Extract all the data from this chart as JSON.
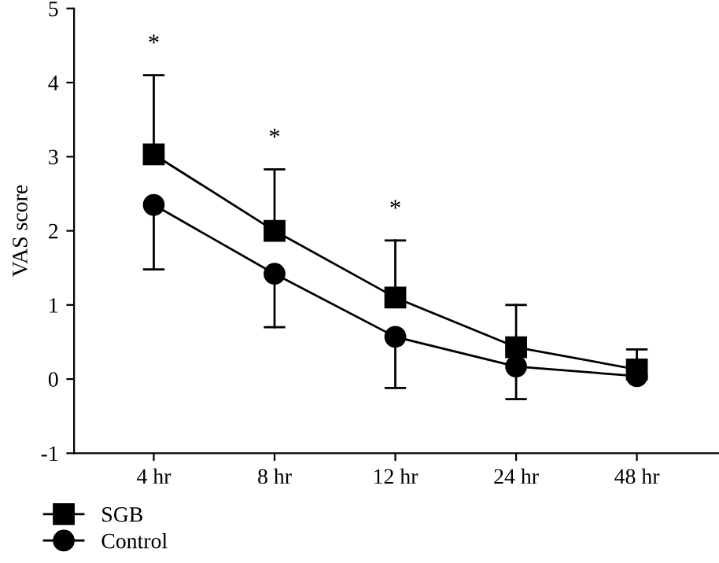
{
  "chart_data": {
    "type": "line",
    "ylabel": "VAS score",
    "categories": [
      "4 hr",
      "8 hr",
      "12 hr",
      "24 hr",
      "48 hr"
    ],
    "series": [
      {
        "name": "SGB",
        "color": "#000000",
        "marker": "square",
        "values": [
          3.03,
          2.0,
          1.1,
          0.43,
          0.13
        ],
        "errors": [
          [
            3.03,
            4.1
          ],
          [
            2.0,
            2.83
          ],
          [
            1.1,
            1.87
          ],
          [
            0.43,
            1.0
          ],
          [
            0.13,
            0.4
          ]
        ]
      },
      {
        "name": "Control",
        "color": "#000000",
        "marker": "circle",
        "values": [
          2.35,
          1.42,
          0.57,
          0.17,
          0.04
        ],
        "errors": [
          [
            1.48,
            2.35
          ],
          [
            0.7,
            1.42
          ],
          [
            -0.12,
            0.57
          ],
          [
            -0.27,
            0.17
          ],
          null
        ]
      }
    ],
    "ylim": [
      -1,
      5
    ],
    "yticks": [
      -1,
      0,
      1,
      2,
      3,
      4,
      5
    ],
    "grid": false,
    "legend": "bottom left",
    "line_style": "solid",
    "annotations": [
      "*",
      "*",
      "*"
    ]
  }
}
